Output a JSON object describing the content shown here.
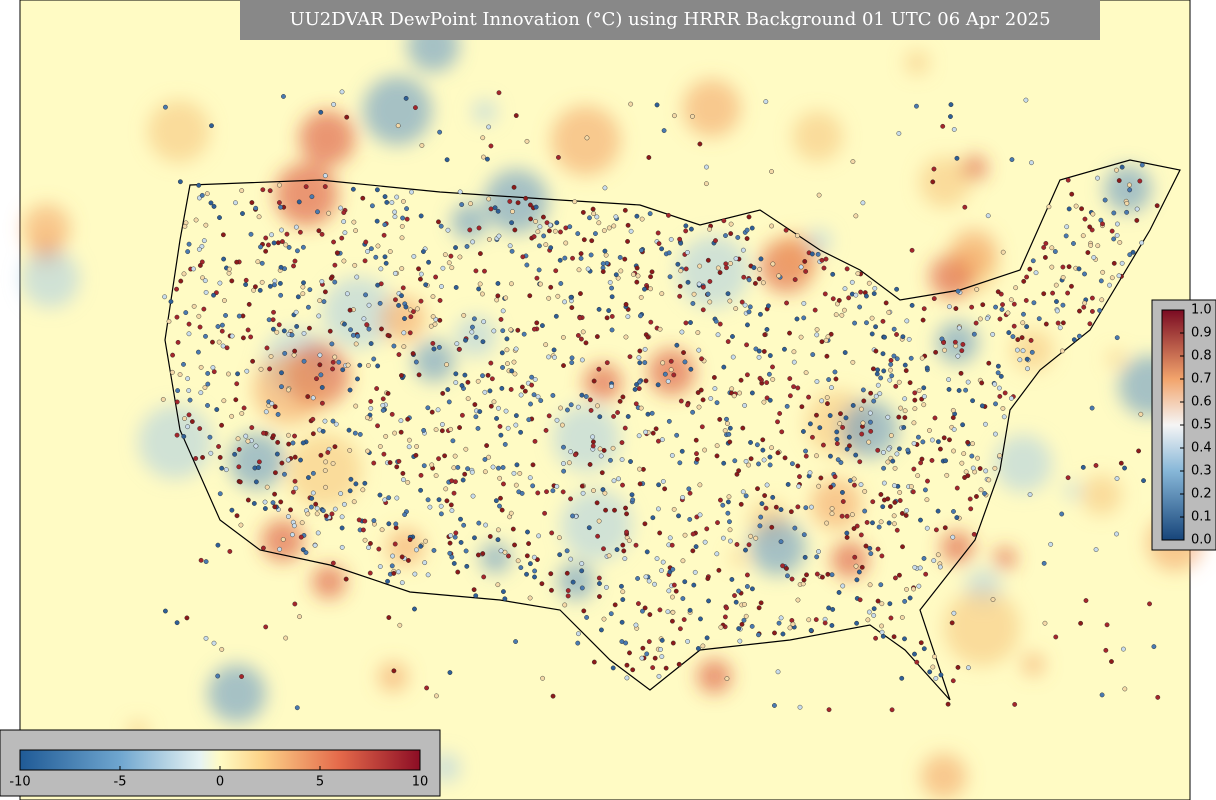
{
  "title": "UU2DVAR DewPoint Innovation (°C) using HRRR Background 01 UTC 06 Apr 2025",
  "colorbars": [
    {
      "name": "innovation",
      "ticks": [
        -10,
        -5,
        0,
        5,
        10
      ]
    },
    {
      "name": "observation",
      "ticks": [
        {
          "value": 0,
          "label": "0.0"
        },
        {
          "value": 0.1,
          "label": "0.1"
        },
        {
          "value": 0.2,
          "label": "0.2"
        },
        {
          "value": 0.3,
          "label": "0.3"
        },
        {
          "value": 0.4,
          "label": "0.4"
        },
        {
          "value": 0.5,
          "label": "0.5"
        },
        {
          "value": 0.6,
          "label": "0.6"
        },
        {
          "value": 0.7,
          "label": "0.7"
        },
        {
          "value": 0.8,
          "label": "0.8"
        },
        {
          "value": 0.9,
          "label": "0.9"
        },
        {
          "value": 1,
          "label": "1.0"
        }
      ]
    }
  ]
}
